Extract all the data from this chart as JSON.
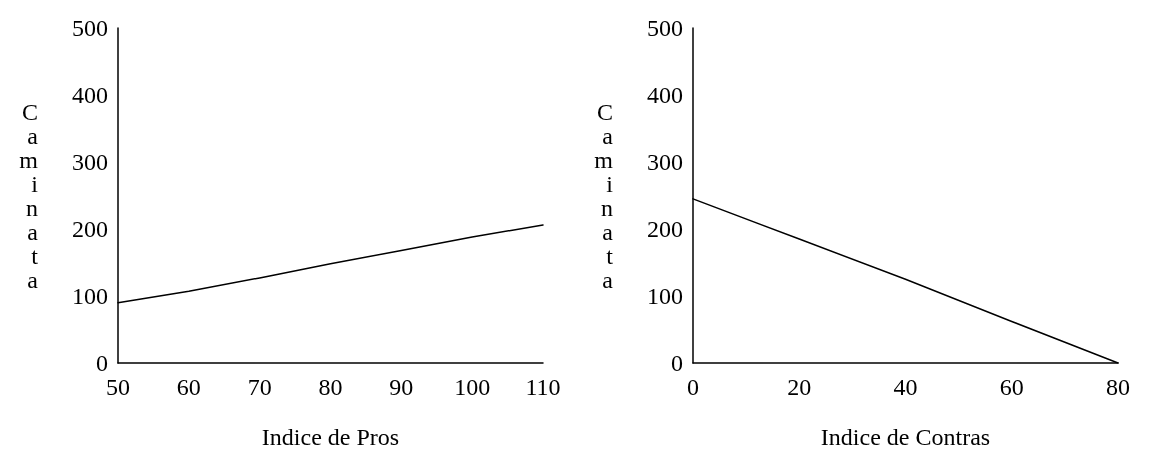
{
  "chart_data": [
    {
      "type": "line",
      "xlabel": "Indice de Pros",
      "ylabel": "Caminata",
      "x": [
        50,
        60,
        70,
        80,
        90,
        100,
        110
      ],
      "values": [
        90,
        107,
        127,
        148,
        168,
        188,
        206
      ],
      "color": "#000000",
      "xlim": [
        50,
        110
      ],
      "xticks": [
        50,
        60,
        70,
        80,
        90,
        100,
        110
      ],
      "ylim": [
        0,
        500
      ],
      "yticks": [
        0,
        100,
        200,
        300,
        400,
        500
      ],
      "marker": "none",
      "line_style": "solid"
    },
    {
      "type": "line",
      "xlabel": "Indice de Contras",
      "ylabel": "Caminata",
      "x": [
        0,
        20,
        40,
        60,
        80
      ],
      "values": [
        245,
        185,
        125,
        62,
        0
      ],
      "color": "#000000",
      "xlim": [
        0,
        80
      ],
      "xticks": [
        0,
        20,
        40,
        60,
        80
      ],
      "ylim": [
        0,
        500
      ],
      "yticks": [
        0,
        100,
        200,
        300,
        400,
        500
      ],
      "marker": "none",
      "line_style": "solid"
    }
  ]
}
